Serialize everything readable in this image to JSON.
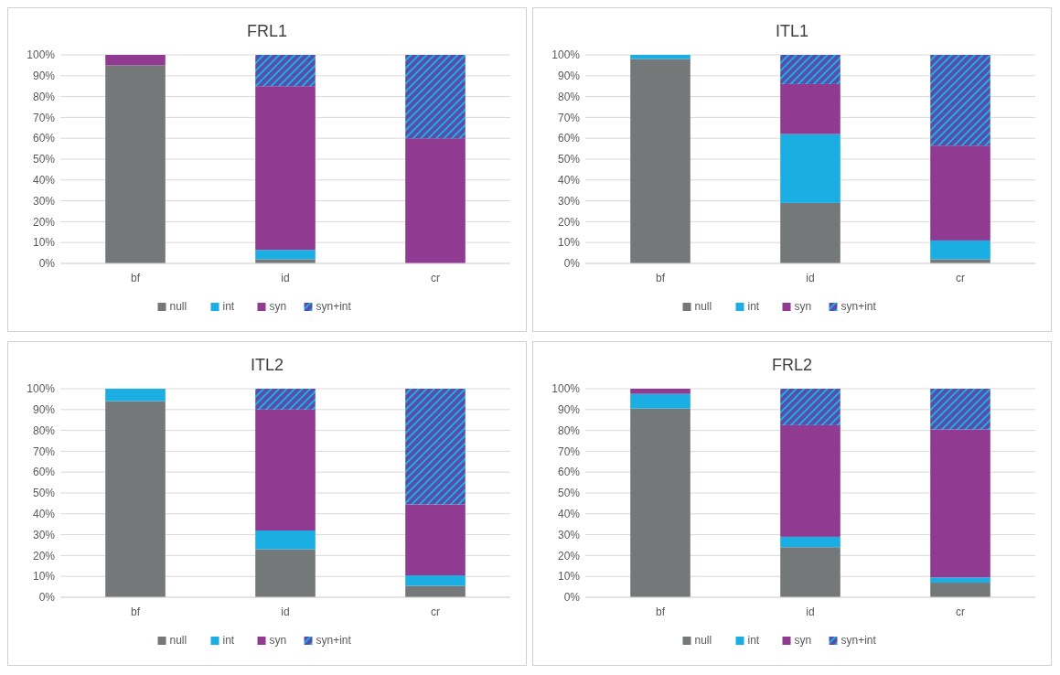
{
  "chart_data": [
    {
      "type": "bar",
      "title": "FRL1",
      "stacked": true,
      "categories": [
        "bf",
        "id",
        "cr"
      ],
      "ylim": [
        0,
        100
      ],
      "yticks": [
        {
          "value": 0,
          "label": "0%"
        },
        {
          "value": 10,
          "label": "10%"
        },
        {
          "value": 20,
          "label": "20%"
        },
        {
          "value": 30,
          "label": "30%"
        },
        {
          "value": 40,
          "label": "40%"
        },
        {
          "value": 50,
          "label": "50%"
        },
        {
          "value": 60,
          "label": "60%"
        },
        {
          "value": 70,
          "label": "70%"
        },
        {
          "value": 80,
          "label": "80%"
        },
        {
          "value": 90,
          "label": "90%"
        },
        {
          "value": 100,
          "label": "100%"
        }
      ],
      "grid": "y",
      "legend": "bottom",
      "series": [
        {
          "name": "null",
          "color": "#757879",
          "values": [
            95,
            2,
            0
          ]
        },
        {
          "name": "int",
          "color": "#1aaee3",
          "values": [
            0,
            4.5,
            0
          ]
        },
        {
          "name": "syn",
          "color": "#913a92",
          "values": [
            5,
            78.5,
            60
          ]
        },
        {
          "name": "syn+int",
          "color": "#5b4caa",
          "values": [
            0,
            15,
            40
          ]
        }
      ]
    },
    {
      "type": "bar",
      "title": "ITL1",
      "stacked": true,
      "categories": [
        "bf",
        "id",
        "cr"
      ],
      "ylim": [
        0,
        100
      ],
      "yticks": [
        {
          "value": 0,
          "label": "0%"
        },
        {
          "value": 10,
          "label": "10%"
        },
        {
          "value": 20,
          "label": "20%"
        },
        {
          "value": 30,
          "label": "30%"
        },
        {
          "value": 40,
          "label": "40%"
        },
        {
          "value": 50,
          "label": "50%"
        },
        {
          "value": 60,
          "label": "60%"
        },
        {
          "value": 70,
          "label": "70%"
        },
        {
          "value": 80,
          "label": "80%"
        },
        {
          "value": 90,
          "label": "90%"
        },
        {
          "value": 100,
          "label": "100%"
        }
      ],
      "grid": "y",
      "legend": "bottom",
      "series": [
        {
          "name": "null",
          "color": "#757879",
          "values": [
            98,
            29,
            2
          ]
        },
        {
          "name": "int",
          "color": "#1aaee3",
          "values": [
            2,
            33,
            9
          ]
        },
        {
          "name": "syn",
          "color": "#913a92",
          "values": [
            0,
            24,
            45.5
          ]
        },
        {
          "name": "syn+int",
          "color": "#5b4caa",
          "values": [
            0,
            14,
            43.5
          ]
        }
      ]
    },
    {
      "type": "bar",
      "title": "ITL2",
      "stacked": true,
      "categories": [
        "bf",
        "id",
        "cr"
      ],
      "ylim": [
        0,
        100
      ],
      "yticks": [
        {
          "value": 0,
          "label": "0%"
        },
        {
          "value": 10,
          "label": "10%"
        },
        {
          "value": 20,
          "label": "20%"
        },
        {
          "value": 30,
          "label": "30%"
        },
        {
          "value": 40,
          "label": "40%"
        },
        {
          "value": 50,
          "label": "50%"
        },
        {
          "value": 60,
          "label": "60%"
        },
        {
          "value": 70,
          "label": "70%"
        },
        {
          "value": 80,
          "label": "80%"
        },
        {
          "value": 90,
          "label": "90%"
        },
        {
          "value": 100,
          "label": "100%"
        }
      ],
      "grid": "y",
      "legend": "bottom",
      "series": [
        {
          "name": "null",
          "color": "#757879",
          "values": [
            94,
            23,
            5.5
          ]
        },
        {
          "name": "int",
          "color": "#1aaee3",
          "values": [
            6,
            9,
            5
          ]
        },
        {
          "name": "syn",
          "color": "#913a92",
          "values": [
            0,
            58,
            34
          ]
        },
        {
          "name": "syn+int",
          "color": "#5b4caa",
          "values": [
            0,
            10,
            55.5
          ]
        }
      ]
    },
    {
      "type": "bar",
      "title": "FRL2",
      "stacked": true,
      "categories": [
        "bf",
        "id",
        "cr"
      ],
      "ylim": [
        0,
        100
      ],
      "yticks": [
        {
          "value": 0,
          "label": "0%"
        },
        {
          "value": 10,
          "label": "10%"
        },
        {
          "value": 20,
          "label": "20%"
        },
        {
          "value": 30,
          "label": "30%"
        },
        {
          "value": 40,
          "label": "40%"
        },
        {
          "value": 50,
          "label": "50%"
        },
        {
          "value": 60,
          "label": "60%"
        },
        {
          "value": 70,
          "label": "70%"
        },
        {
          "value": 80,
          "label": "80%"
        },
        {
          "value": 90,
          "label": "90%"
        },
        {
          "value": 100,
          "label": "100%"
        }
      ],
      "grid": "y",
      "legend": "bottom",
      "series": [
        {
          "name": "null",
          "color": "#757879",
          "values": [
            90.5,
            24,
            7
          ]
        },
        {
          "name": "int",
          "color": "#1aaee3",
          "values": [
            7,
            5,
            2.5
          ]
        },
        {
          "name": "syn",
          "color": "#913a92",
          "values": [
            2.5,
            53.5,
            71
          ]
        },
        {
          "name": "syn+int",
          "color": "#5b4caa",
          "values": [
            0,
            17.5,
            19.5
          ]
        }
      ]
    }
  ]
}
